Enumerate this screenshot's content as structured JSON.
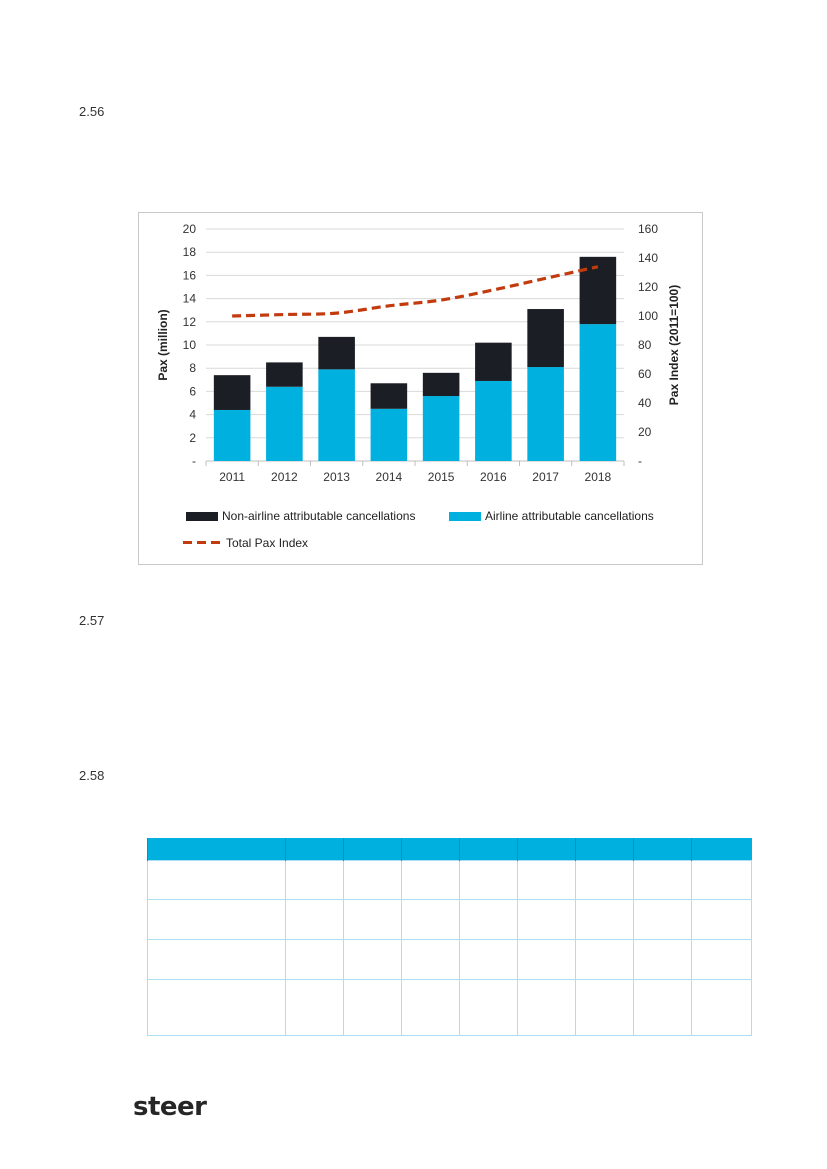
{
  "paragraphs": [
    "2.56",
    "2.57",
    "2.58"
  ],
  "colors": {
    "non_airline": "#1b1e24",
    "airline": "#00b0df",
    "index_line": "#c23b0e",
    "grid": "#d9d9d9"
  },
  "chart_data": {
    "type": "bar",
    "stacked": true,
    "categories": [
      "2011",
      "2012",
      "2013",
      "2014",
      "2015",
      "2016",
      "2017",
      "2018"
    ],
    "series": [
      {
        "name": "Airline attributable cancellations",
        "axis": "left",
        "values": [
          4.4,
          6.4,
          7.9,
          4.5,
          5.6,
          6.9,
          8.1,
          11.8
        ]
      },
      {
        "name": "Non-airline attributable cancellations",
        "axis": "left",
        "values": [
          3.0,
          2.1,
          2.8,
          2.2,
          2.0,
          3.3,
          5.0,
          5.8
        ]
      },
      {
        "name": "Total Pax Index",
        "type": "line",
        "style": "dashed",
        "axis": "right",
        "values": [
          100,
          101,
          102,
          107,
          111,
          118,
          126,
          134
        ]
      }
    ],
    "ylabel": "Pax (million)",
    "y2label": "Pax Index (2011=100)",
    "ylim": [
      0,
      20
    ],
    "y2lim": [
      0,
      160
    ],
    "yticks": [
      "-",
      "2",
      "4",
      "6",
      "8",
      "10",
      "12",
      "14",
      "16",
      "18",
      "20"
    ],
    "y2ticks": [
      "-",
      "20",
      "40",
      "60",
      "80",
      "100",
      "120",
      "140",
      "160"
    ],
    "legend": [
      {
        "label": "Non-airline attributable cancellations",
        "kind": "bar",
        "color": "#1b1e24"
      },
      {
        "label": "Airline attributable cancellations",
        "kind": "bar",
        "color": "#00b0df"
      },
      {
        "label": "Total Pax Index",
        "kind": "dash",
        "color": "#c23b0e"
      }
    ],
    "legend_position": "bottom"
  },
  "table": {
    "columns": 9,
    "body_rows": 4
  },
  "footer": {
    "logo_text": "steer"
  }
}
